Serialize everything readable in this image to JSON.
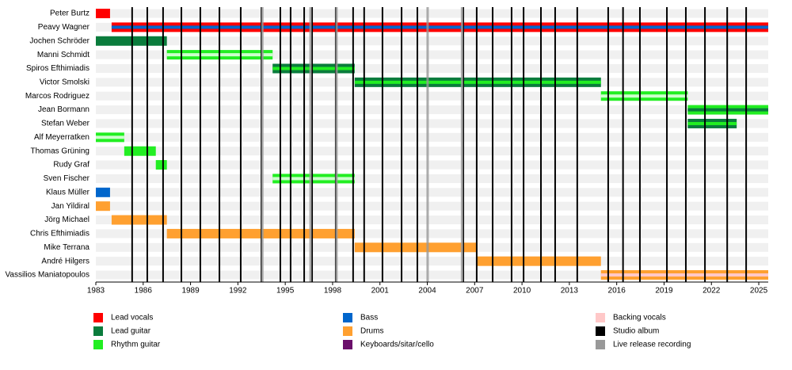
{
  "chart_data": {
    "type": "timeline",
    "xlim": [
      1983,
      2025.6
    ],
    "xticks": [
      1983,
      1986,
      1989,
      1992,
      1995,
      1998,
      2001,
      2004,
      2007,
      2010,
      2013,
      2016,
      2019,
      2022,
      2025
    ],
    "members": [
      {
        "name": "Peter Burtz",
        "bars": [
          {
            "start": 1983,
            "end": 1983.9,
            "color": "#ff0000"
          }
        ]
      },
      {
        "name": "Peavy Wagner",
        "bars": [
          {
            "start": 1984,
            "end": 2025.6,
            "color": "#ff0000",
            "stripe": "#0066cc"
          }
        ]
      },
      {
        "name": "Jochen Schröder",
        "bars": [
          {
            "start": 1983,
            "end": 1987.5,
            "color": "#0a7c3c"
          }
        ]
      },
      {
        "name": "Manni Schmidt",
        "bars": [
          {
            "start": 1987.5,
            "end": 1994.2,
            "color": "#22ee22",
            "stripe": "#ccffcc"
          }
        ]
      },
      {
        "name": "Spiros Efthimiadis",
        "bars": [
          {
            "start": 1994.2,
            "end": 1999.4,
            "color": "#0a7c3c",
            "stripe": "#22ee22"
          }
        ]
      },
      {
        "name": "Victor Smolski",
        "bars": [
          {
            "start": 1999.4,
            "end": 2015,
            "color": "#0a7c3c",
            "stripe": "#22ee22"
          }
        ]
      },
      {
        "name": "Marcos Rodriguez",
        "bars": [
          {
            "start": 2015,
            "end": 2020.5,
            "color": "#22ee22",
            "stripe": "#ccffcc"
          }
        ]
      },
      {
        "name": "Jean Bormann",
        "bars": [
          {
            "start": 2020.5,
            "end": 2025.6,
            "color": "#22ee22",
            "stripe": "#0a7c3c"
          }
        ]
      },
      {
        "name": "Stefan Weber",
        "bars": [
          {
            "start": 2020.5,
            "end": 2023.6,
            "color": "#0a7c3c",
            "stripe": "#22ee22"
          }
        ]
      },
      {
        "name": "Alf Meyerratken",
        "bars": [
          {
            "start": 1983,
            "end": 1984.8,
            "color": "#22ee22",
            "stripe": "#ccffcc"
          }
        ]
      },
      {
        "name": "Thomas Grüning",
        "bars": [
          {
            "start": 1984.8,
            "end": 1986.8,
            "color": "#22ee22"
          }
        ]
      },
      {
        "name": "Rudy Graf",
        "bars": [
          {
            "start": 1986.8,
            "end": 1987.5,
            "color": "#22ee22"
          }
        ]
      },
      {
        "name": "Sven Fischer",
        "bars": [
          {
            "start": 1994.2,
            "end": 1999.4,
            "color": "#22ee22",
            "stripe": "#ccffcc"
          }
        ]
      },
      {
        "name": "Klaus Müller",
        "bars": [
          {
            "start": 1983,
            "end": 1983.9,
            "color": "#0066cc"
          }
        ]
      },
      {
        "name": "Jan Yildiral",
        "bars": [
          {
            "start": 1983,
            "end": 1983.9,
            "color": "#ffa030"
          }
        ]
      },
      {
        "name": "Jörg Michael",
        "bars": [
          {
            "start": 1984,
            "end": 1987.5,
            "color": "#ffa030"
          }
        ]
      },
      {
        "name": "Chris Efthimiadis",
        "bars": [
          {
            "start": 1987.5,
            "end": 1999.4,
            "color": "#ffa030"
          }
        ]
      },
      {
        "name": "Mike Terrana",
        "bars": [
          {
            "start": 1999.4,
            "end": 2007.1,
            "color": "#ffa030"
          }
        ]
      },
      {
        "name": "André Hilgers",
        "bars": [
          {
            "start": 2007.1,
            "end": 2015,
            "color": "#ffa030"
          }
        ]
      },
      {
        "name": "Vassilios Maniatopoulos",
        "bars": [
          {
            "start": 2015,
            "end": 2025.6,
            "color": "#ffa030",
            "stripe": "#ffc8c8"
          }
        ]
      }
    ],
    "roles": [
      {
        "name": "Lead vocals",
        "color": "#ff0000"
      },
      {
        "name": "Lead guitar",
        "color": "#0a7c3c"
      },
      {
        "name": "Rhythm guitar",
        "color": "#22ee22"
      },
      {
        "name": "Bass",
        "color": "#0066cc"
      },
      {
        "name": "Drums",
        "color": "#ffa030"
      },
      {
        "name": "Keyboards/sitar/cello",
        "color": "#6b0f6b"
      },
      {
        "name": "Backing vocals",
        "color": "#ffc8c8"
      }
    ],
    "events": [
      {
        "name": "Studio album",
        "color": "#000000",
        "years": [
          1985.3,
          1986.26,
          1987.26,
          1988.42,
          1989.62,
          1990.83,
          1992.18,
          1993.49,
          1994.69,
          1995.34,
          1996.2,
          1996.7,
          1998.2,
          1999.3,
          2000.0,
          2001.16,
          2002.37,
          2003.37,
          2006.28,
          2007.13,
          2008.14,
          2009.34,
          2010.1,
          2011.2,
          2012.1,
          2013.5,
          2015.46,
          2016.4,
          2017.47,
          2019.18,
          2020.38,
          2021.59,
          2023.0,
          2024.2
        ]
      },
      {
        "name": "Live release recording",
        "color": "#999999",
        "years": [
          1993.55,
          1996.6,
          1998.25,
          2004.02,
          2006.2
        ]
      }
    ]
  }
}
